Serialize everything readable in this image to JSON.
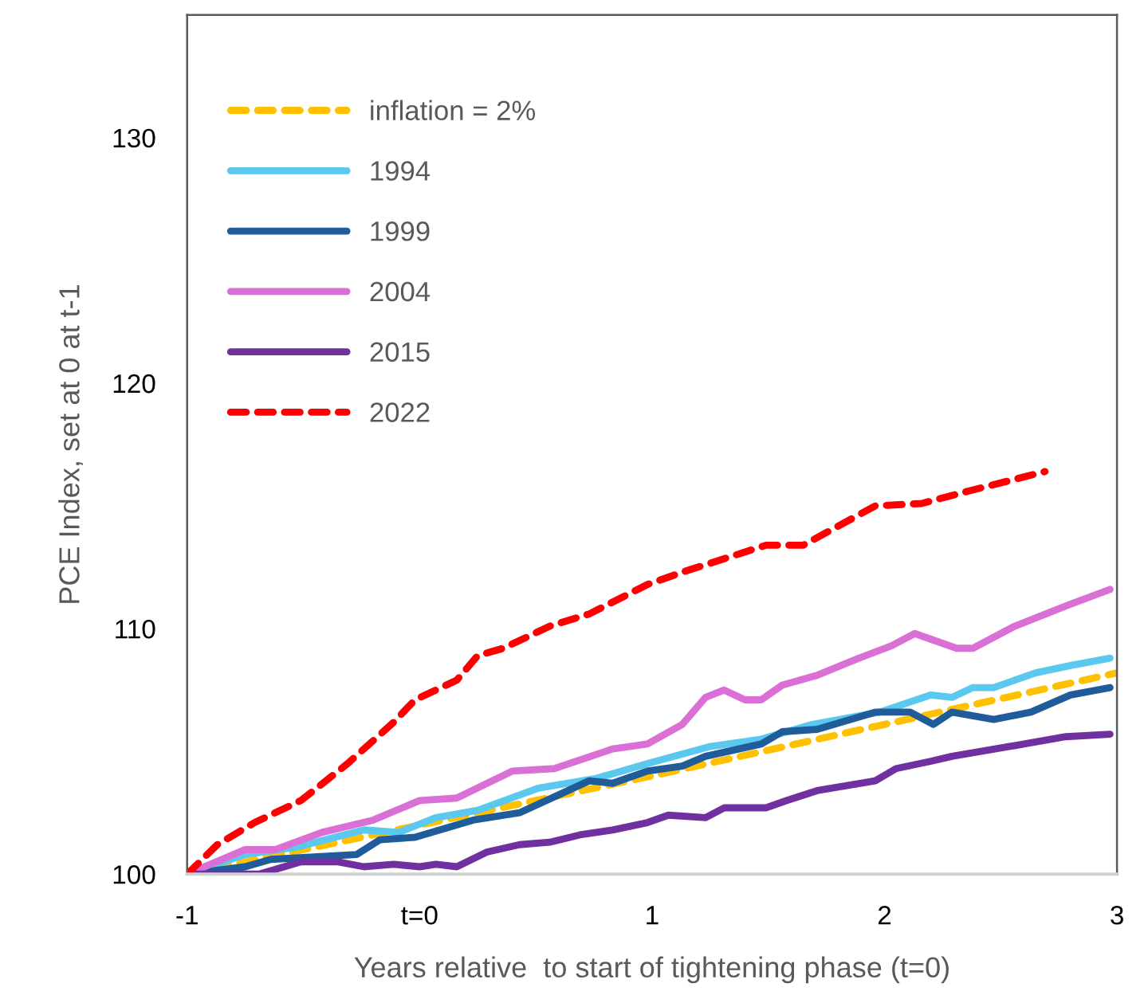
{
  "chart_data": {
    "type": "line",
    "xlabel": "Years relative  to start of tightening phase (t=0)",
    "ylabel": "PCE Index, set at 0 at t-1",
    "xlim": [
      -1,
      3
    ],
    "ylim": [
      100,
      135
    ],
    "xticks": [
      -1,
      {
        "value": 0,
        "label": "t=0"
      },
      1,
      2,
      3
    ],
    "yticks": [
      100,
      110,
      120,
      130
    ],
    "grid": false,
    "legend": "top left",
    "marker": "none",
    "series": [
      {
        "name": "inflation = 2%",
        "color": "#ffc000",
        "line_style": "dashed",
        "x": [
          -1,
          0,
          1,
          2,
          3
        ],
        "values": [
          100,
          102.0,
          104.0,
          106.1,
          108.2
        ]
      },
      {
        "name": "1994",
        "color": "#5bc8f0",
        "line_style": "solid",
        "x": [
          -1,
          -0.75,
          -0.53,
          -0.24,
          -0.09,
          0.07,
          0.25,
          0.51,
          0.76,
          0.98,
          1.25,
          1.47,
          1.69,
          1.98,
          2.2,
          2.29,
          2.38,
          2.47,
          2.65,
          2.8,
          2.97
        ],
        "values": [
          100,
          100.8,
          101.1,
          101.8,
          101.7,
          102.3,
          102.6,
          103.5,
          103.9,
          104.5,
          105.2,
          105.5,
          106.1,
          106.6,
          107.3,
          107.2,
          107.6,
          107.6,
          108.2,
          108.5,
          108.8
        ]
      },
      {
        "name": "1999",
        "color": "#1f5c99",
        "line_style": "solid",
        "x": [
          -1,
          -0.75,
          -0.64,
          -0.27,
          -0.17,
          -0.02,
          0.23,
          0.43,
          0.73,
          0.83,
          0.98,
          1.13,
          1.23,
          1.47,
          1.56,
          1.71,
          1.96,
          2.11,
          2.21,
          2.29,
          2.47,
          2.63,
          2.8,
          2.97
        ],
        "values": [
          100,
          100.3,
          100.6,
          100.8,
          101.4,
          101.5,
          102.2,
          102.5,
          103.8,
          103.7,
          104.2,
          104.4,
          104.8,
          105.3,
          105.8,
          105.9,
          106.6,
          106.6,
          106.1,
          106.6,
          106.3,
          106.6,
          107.3,
          107.6
        ]
      },
      {
        "name": "2004",
        "color": "#da70d6",
        "line_style": "solid",
        "x": [
          -1,
          -0.75,
          -0.62,
          -0.42,
          -0.2,
          0,
          0.16,
          0.4,
          0.58,
          0.83,
          0.98,
          1.13,
          1.23,
          1.31,
          1.4,
          1.47,
          1.56,
          1.71,
          1.89,
          2.03,
          2.13,
          2.31,
          2.38,
          2.56,
          2.8,
          2.97
        ],
        "values": [
          100,
          101.0,
          101.0,
          101.7,
          102.2,
          103.0,
          103.1,
          104.2,
          104.3,
          105.1,
          105.3,
          106.1,
          107.2,
          107.5,
          107.1,
          107.1,
          107.7,
          108.1,
          108.8,
          109.3,
          109.8,
          109.2,
          109.2,
          110.1,
          111.0,
          111.6
        ]
      },
      {
        "name": "2015",
        "color": "#7030a0",
        "line_style": "solid",
        "x": [
          -1,
          -0.69,
          -0.51,
          -0.35,
          -0.24,
          -0.11,
          0,
          0.07,
          0.16,
          0.29,
          0.43,
          0.56,
          0.69,
          0.83,
          0.98,
          1.07,
          1.23,
          1.31,
          1.49,
          1.58,
          1.71,
          1.96,
          2.05,
          2.2,
          2.29,
          2.6,
          2.78,
          2.97
        ],
        "values": [
          100,
          100,
          100.5,
          100.5,
          100.3,
          100.4,
          100.3,
          100.4,
          100.3,
          100.9,
          101.2,
          101.3,
          101.6,
          101.8,
          102.1,
          102.4,
          102.3,
          102.7,
          102.7,
          103.0,
          103.4,
          103.8,
          104.3,
          104.6,
          104.8,
          105.3,
          105.6,
          105.7
        ]
      },
      {
        "name": "2022",
        "color": "#ff0000",
        "line_style": "dashed",
        "x": [
          -1,
          -0.87,
          -0.71,
          -0.51,
          -0.31,
          -0.11,
          -0.02,
          0.16,
          0.25,
          0.36,
          0.56,
          0.73,
          0.98,
          1.13,
          1.36,
          1.49,
          1.65,
          1.96,
          2.16,
          2.36,
          2.69
        ],
        "values": [
          100,
          101.2,
          102.1,
          103.0,
          104.5,
          106.2,
          107.1,
          107.9,
          108.9,
          109.2,
          110.1,
          110.6,
          111.8,
          112.3,
          113.0,
          113.4,
          113.4,
          115.0,
          115.1,
          115.6,
          116.4
        ]
      }
    ]
  }
}
